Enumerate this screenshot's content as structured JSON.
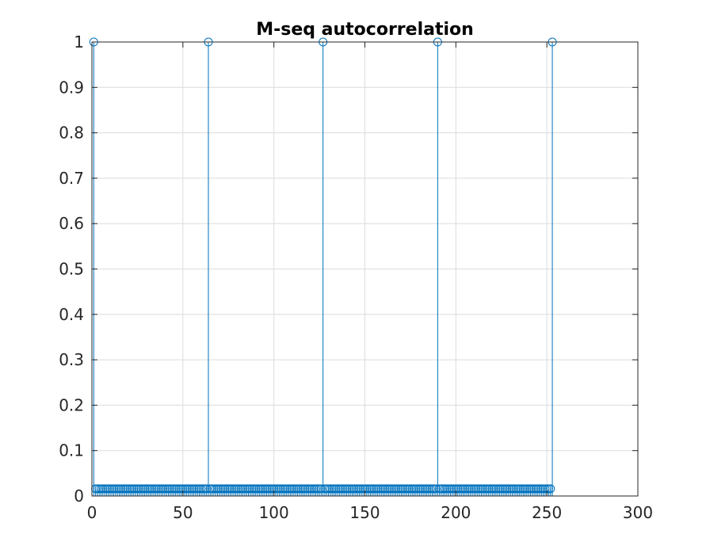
{
  "chart_data": {
    "type": "stem",
    "title": "M-seq autocorrelation",
    "xlabel": "",
    "ylabel": "",
    "xlim": [
      0,
      300
    ],
    "ylim": [
      0,
      1
    ],
    "xticks": [
      0,
      50,
      100,
      150,
      200,
      250,
      300
    ],
    "yticks": [
      0,
      0.1,
      0.2,
      0.3,
      0.4,
      0.5,
      0.6,
      0.7,
      0.8,
      0.9,
      1
    ],
    "grid": true,
    "color": "#0072BD",
    "series": [
      {
        "x_start": 1,
        "x_end": 253,
        "baseline_value": 0.0159,
        "peaks": [
          {
            "x": 1,
            "y": 1
          },
          {
            "x": 64,
            "y": 1
          },
          {
            "x": 127,
            "y": 1
          },
          {
            "x": 190,
            "y": 1
          },
          {
            "x": 253,
            "y": 1
          }
        ]
      }
    ]
  }
}
